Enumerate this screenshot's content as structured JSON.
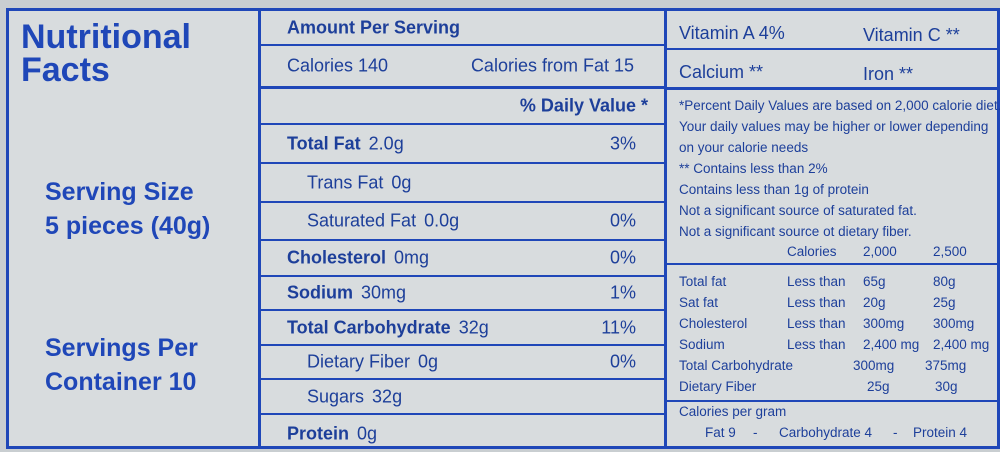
{
  "header": {
    "title_line1": "Nutritional",
    "title_line2": "Facts"
  },
  "serving": {
    "size_line1": "Serving Size",
    "size_line2": "5 pieces (40g)",
    "per_container_line1": "Servings Per",
    "per_container_line2": "Container 10"
  },
  "amount": {
    "header": "Amount Per Serving",
    "calories": "Calories 140",
    "calories_from_fat": "Calories from Fat 15",
    "daily_value_header": "% Daily Value *"
  },
  "nutrients": [
    {
      "name": "Total Fat",
      "amount": "2.0g",
      "dv": "3%",
      "bold": true,
      "indent": false
    },
    {
      "name": "Trans Fat",
      "amount": "0g",
      "dv": "",
      "bold": false,
      "indent": true
    },
    {
      "name": "Saturated Fat",
      "amount": "0.0g",
      "dv": "0%",
      "bold": false,
      "indent": true
    },
    {
      "name": "Cholesterol",
      "amount": "0mg",
      "dv": "0%",
      "bold": true,
      "indent": false
    },
    {
      "name": "Sodium",
      "amount": "30mg",
      "dv": "1%",
      "bold": true,
      "indent": false
    },
    {
      "name": "Total Carbohydrate",
      "amount": "32g",
      "dv": "11%",
      "bold": true,
      "indent": false
    },
    {
      "name": "Dietary Fiber",
      "amount": "0g",
      "dv": "0%",
      "bold": false,
      "indent": true
    },
    {
      "name": "Sugars",
      "amount": "32g",
      "dv": "",
      "bold": false,
      "indent": true
    },
    {
      "name": "Protein",
      "amount": "0g",
      "dv": "",
      "bold": true,
      "indent": false
    }
  ],
  "vitamins": {
    "vitamin_a": "Vitamin A 4%",
    "vitamin_c": "Vitamin C **",
    "calcium": "Calcium **",
    "iron": "Iron **"
  },
  "footnotes": [
    "*Percent Daily Values are based on 2,000 calorie diet.",
    "Your daily values may be higher or lower depending",
    "on your calorie needs",
    "** Contains less than 2%",
    "Contains less than 1g of protein",
    "Not a significant source of saturated fat.",
    "Not a significant source ot dietary fiber."
  ],
  "dv_table": {
    "calories_label": "Calories",
    "col_2000": "2,000",
    "col_2500": "2,500",
    "rows": [
      {
        "name": "Total fat",
        "qual": "Less than",
        "a": "65g",
        "b": "80g"
      },
      {
        "name": "Sat fat",
        "qual": "Less than",
        "a": "20g",
        "b": "25g"
      },
      {
        "name": "Cholesterol",
        "qual": "Less than",
        "a": "300mg",
        "b": "300mg"
      },
      {
        "name": "Sodium",
        "qual": "Less than",
        "a": "2,400 mg",
        "b": "2,400 mg"
      },
      {
        "name": "Total Carbohydrate",
        "qual": "",
        "a": "300mg",
        "b": "375mg"
      },
      {
        "name": "Dietary Fiber",
        "qual": "",
        "a": "25g",
        "b": "30g"
      }
    ]
  },
  "calories_per_gram": {
    "label": "Calories per gram",
    "fat": "Fat 9",
    "sep1": "-",
    "carb": "Carbohydrate 4",
    "sep2": "-",
    "protein": "Protein 4"
  }
}
